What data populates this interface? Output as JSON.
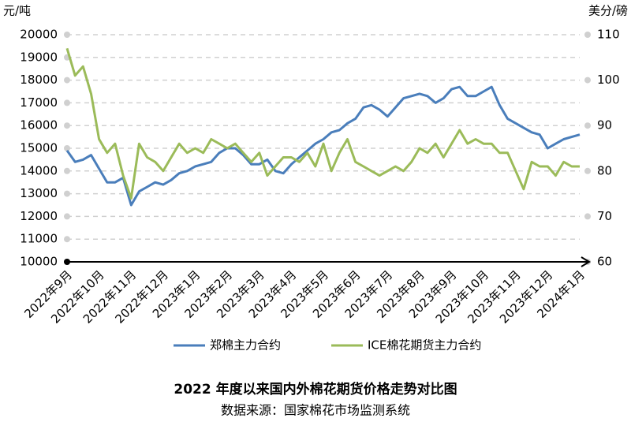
{
  "chart_data": {
    "type": "line",
    "title": "2022 年度以来国内外棉花期货价格走势对比图",
    "subtitle": "数据来源：国家棉花市场监测系统",
    "y_label": "元/吨",
    "y2_label": "美分/磅",
    "categories": [
      "2022年9月",
      null,
      null,
      null,
      "2022年10月",
      null,
      null,
      null,
      "2022年11月",
      null,
      null,
      null,
      "2022年12月",
      null,
      null,
      null,
      "2023年1月",
      null,
      null,
      null,
      "2023年2月",
      null,
      null,
      null,
      "2023年3月",
      null,
      null,
      null,
      "2023年4月",
      null,
      null,
      null,
      "2023年5月",
      null,
      null,
      null,
      "2023年6月",
      null,
      null,
      null,
      "2023年7月",
      null,
      null,
      null,
      "2023年8月",
      null,
      null,
      null,
      "2023年9月",
      null,
      null,
      null,
      "2023年10月",
      null,
      null,
      null,
      "2023年11月",
      null,
      null,
      null,
      "2023年12月",
      null,
      null,
      null,
      "2024年1月"
    ],
    "series": [
      {
        "name": "郑棉主力合约",
        "color": "#4a7ebb",
        "values": [
          14900,
          14400,
          14500,
          14700,
          14100,
          13500,
          13500,
          13700,
          12500,
          13100,
          13300,
          13500,
          13400,
          13600,
          13900,
          14000,
          14200,
          14300,
          14400,
          14800,
          15000,
          15000,
          14700,
          14300,
          14300,
          14500,
          14000,
          13900,
          14300,
          14600,
          14900,
          15200,
          15400,
          15700,
          15800,
          16100,
          16300,
          16800,
          16900,
          16700,
          16400,
          16800,
          17200,
          17300,
          17400,
          17300,
          17000,
          17200,
          17600,
          17700,
          17300,
          17300,
          17500,
          17700,
          16900,
          16300,
          16100,
          15900,
          15700,
          15600,
          15000,
          15200,
          15400,
          15500,
          15600
        ]
      },
      {
        "name": "ICE棉花期货主力合约",
        "color": "#9bbb59",
        "axis": "y2",
        "values": [
          107,
          101,
          103,
          97,
          87,
          84,
          86,
          79,
          74,
          86,
          83,
          82,
          80,
          83,
          86,
          84,
          85,
          84,
          87,
          86,
          85,
          86,
          84,
          82,
          84,
          79,
          81,
          83,
          83,
          82,
          84,
          81,
          86,
          80,
          84,
          87,
          82,
          81,
          80,
          79,
          80,
          81,
          80,
          82,
          85,
          84,
          86,
          83,
          86,
          89,
          86,
          87,
          86,
          86,
          84,
          84,
          80,
          76,
          82,
          81,
          81,
          79,
          82,
          81,
          81
        ]
      }
    ],
    "ylim": [
      10000,
      20000
    ],
    "yticks": [
      10000,
      11000,
      12000,
      13000,
      14000,
      15000,
      16000,
      17000,
      18000,
      19000,
      20000
    ],
    "y2lim": [
      60,
      110
    ],
    "y2ticks": [
      60,
      70,
      80,
      90,
      100,
      110
    ],
    "grid": true,
    "legend": "bottom"
  }
}
